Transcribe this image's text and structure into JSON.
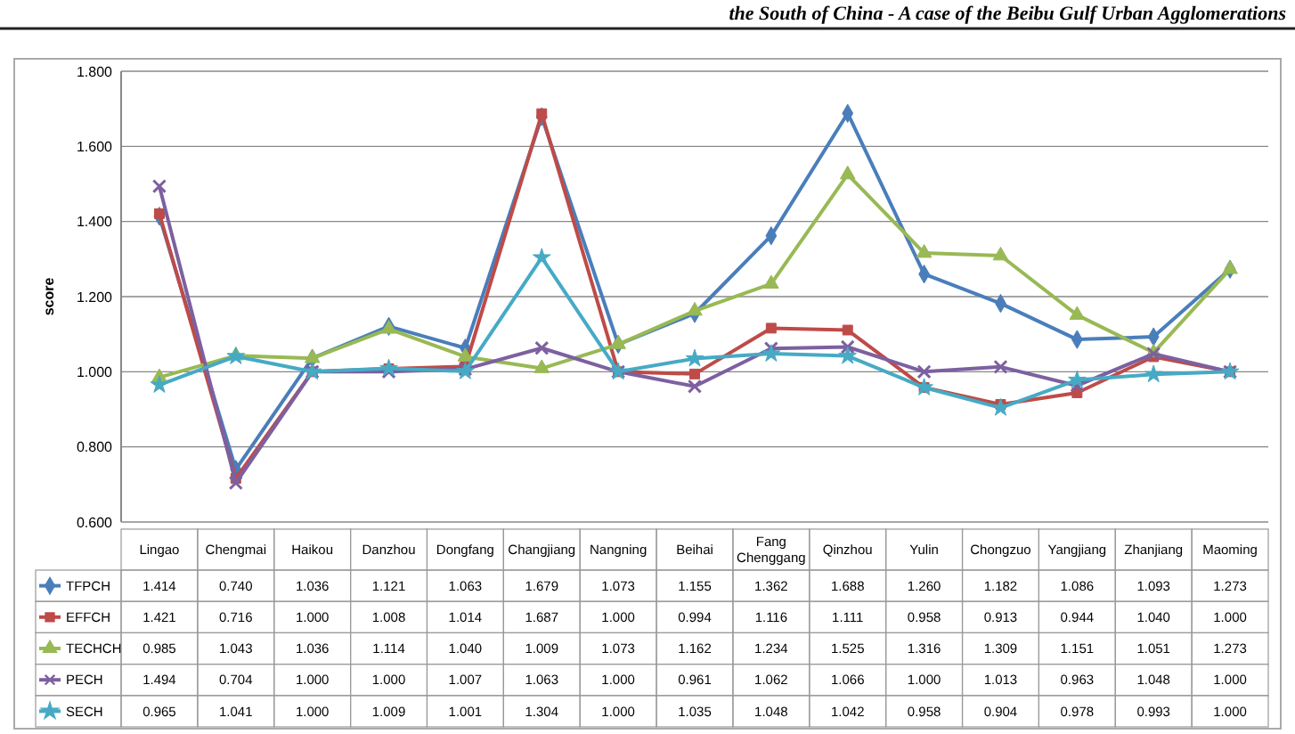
{
  "chart_data": {
    "type": "line",
    "annotations": [
      "the South of China - A case of the Beibu Gulf Urban Agglomerations"
    ],
    "ylabel": "score",
    "categories": [
      "Lingao",
      "Chengmai",
      "Haikou",
      "Danzhou",
      "Dongfang",
      "Changjiang",
      "Nangning",
      "Beihai",
      "Fang Chenggang",
      "Qinzhou",
      "Yulin",
      "Chongzuo",
      "Yangjiang",
      "Zhanjiang",
      "Maoming"
    ],
    "series": [
      {
        "name": "TFPCH",
        "color": "#4a7ebb",
        "marker": "diamond",
        "values": [
          1.414,
          0.74,
          1.036,
          1.121,
          1.063,
          1.679,
          1.073,
          1.155,
          1.362,
          1.688,
          1.26,
          1.182,
          1.086,
          1.093,
          1.273
        ],
        "value_labels": [
          "1.414",
          "0.740",
          "1.036",
          "1.121",
          "1.063",
          "1.679",
          "1.073",
          "1.155",
          "1.362",
          "1.688",
          "1.260",
          "1.182",
          "1.086",
          "1.093",
          "1.273"
        ]
      },
      {
        "name": "EFFCH",
        "color": "#be4b48",
        "marker": "square",
        "values": [
          1.421,
          0.716,
          1.0,
          1.008,
          1.014,
          1.687,
          1.0,
          0.994,
          1.116,
          1.111,
          0.958,
          0.913,
          0.944,
          1.04,
          1.0
        ],
        "value_labels": [
          "1.421",
          "0.716",
          "1.000",
          "1.008",
          "1.014",
          "1.687",
          "1.000",
          "0.994",
          "1.116",
          "1.111",
          "0.958",
          "0.913",
          "0.944",
          "1.040",
          "1.000"
        ]
      },
      {
        "name": "TECHCH",
        "color": "#98b954",
        "marker": "triangle",
        "values": [
          0.985,
          1.043,
          1.036,
          1.114,
          1.04,
          1.009,
          1.073,
          1.162,
          1.234,
          1.525,
          1.316,
          1.309,
          1.151,
          1.051,
          1.273
        ],
        "value_labels": [
          "0.985",
          "1.043",
          "1.036",
          "1.114",
          "1.040",
          "1.009",
          "1.073",
          "1.162",
          "1.234",
          "1.525",
          "1.316",
          "1.309",
          "1.151",
          "1.051",
          "1.273"
        ]
      },
      {
        "name": "PECH",
        "color": "#7d60a0",
        "marker": "cross",
        "values": [
          1.494,
          0.704,
          1.0,
          1.0,
          1.007,
          1.063,
          1.0,
          0.961,
          1.062,
          1.066,
          1.0,
          1.013,
          0.963,
          1.048,
          1.0
        ],
        "value_labels": [
          "1.494",
          "0.704",
          "1.000",
          "1.000",
          "1.007",
          "1.063",
          "1.000",
          "0.961",
          "1.062",
          "1.066",
          "1.000",
          "1.013",
          "0.963",
          "1.048",
          "1.000"
        ]
      },
      {
        "name": "SECH",
        "color": "#46aac5",
        "marker": "star",
        "values": [
          0.965,
          1.041,
          1.0,
          1.009,
          1.001,
          1.304,
          1.0,
          1.035,
          1.048,
          1.042,
          0.958,
          0.904,
          0.978,
          0.993,
          1.0
        ],
        "value_labels": [
          "0.965",
          "1.041",
          "1.000",
          "1.009",
          "1.001",
          "1.304",
          "1.000",
          "1.035",
          "1.048",
          "1.042",
          "0.958",
          "0.904",
          "0.978",
          "0.993",
          "1.000"
        ]
      }
    ],
    "ylim": [
      0.6,
      1.8
    ],
    "yticks": [
      {
        "value": 0.6,
        "label": "0.600"
      },
      {
        "value": 0.8,
        "label": "0.800"
      },
      {
        "value": 1.0,
        "label": "1.000"
      },
      {
        "value": 1.2,
        "label": "1.200"
      },
      {
        "value": 1.4,
        "label": "1.400"
      },
      {
        "value": 1.6,
        "label": "1.600"
      },
      {
        "value": 1.8,
        "label": "1.800"
      }
    ],
    "grid": "y",
    "legend": "left",
    "line_style": "solid"
  }
}
